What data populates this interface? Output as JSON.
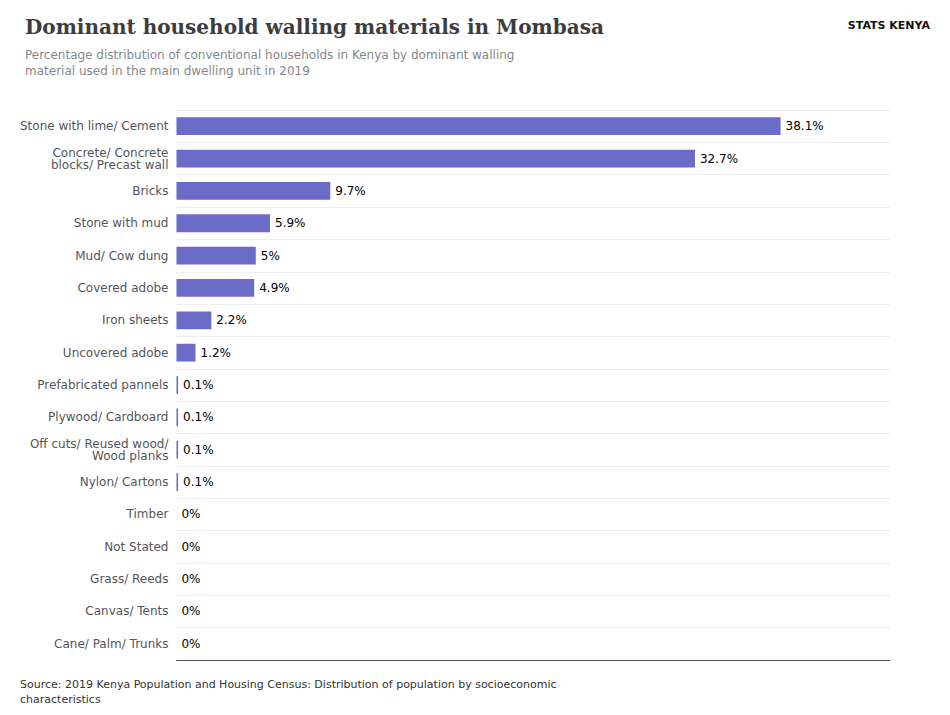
{
  "chart_data": {
    "type": "bar",
    "orientation": "horizontal",
    "title": "Dominant household walling materials in Mombasa",
    "subtitle": "Percentage distribution of conventional households in Kenya by dominant walling\nmaterial used in the main dwelling unit in 2019",
    "source": "Source: 2019 Kenya Population and Housing Census: Distribution of population by socioeconomic\ncharacteristics",
    "annotations": [
      "STATS KENYA"
    ],
    "categories": [
      "Stone with lime/ Cement",
      "Concrete/ Concrete\nblocks/ Precast wall",
      "Bricks",
      "Stone with mud",
      "Mud/ Cow dung",
      "Covered adobe",
      "Iron sheets",
      "Uncovered adobe",
      "Prefabricated pannels",
      "Plywood/ Cardboard",
      "Off cuts/ Reused wood/\nWood planks",
      "Nylon/ Cartons",
      "Timber",
      "Not Stated",
      "Grass/ Reeds",
      "Canvas/ Tents",
      "Cane/ Palm/ Trunks"
    ],
    "values": [
      38.1,
      32.7,
      9.7,
      5.9,
      5.0,
      4.9,
      2.2,
      1.2,
      0.1,
      0.1,
      0.1,
      0.1,
      0.0,
      0.0,
      0.0,
      0.0,
      0.0
    ],
    "value_labels": [
      "38.1%",
      "32.7%",
      "9.7%",
      "5.9%",
      "5%",
      "4.9%",
      "2.2%",
      "1.2%",
      "0.1%",
      "0.1%",
      "0.1%",
      "0.1%",
      "0%",
      "0%",
      "0%",
      "0%",
      "0%"
    ],
    "color": "#6B6BC8",
    "xlim": [
      0,
      45
    ],
    "grid": true,
    "data_labels": true,
    "tick_labels": "y"
  }
}
